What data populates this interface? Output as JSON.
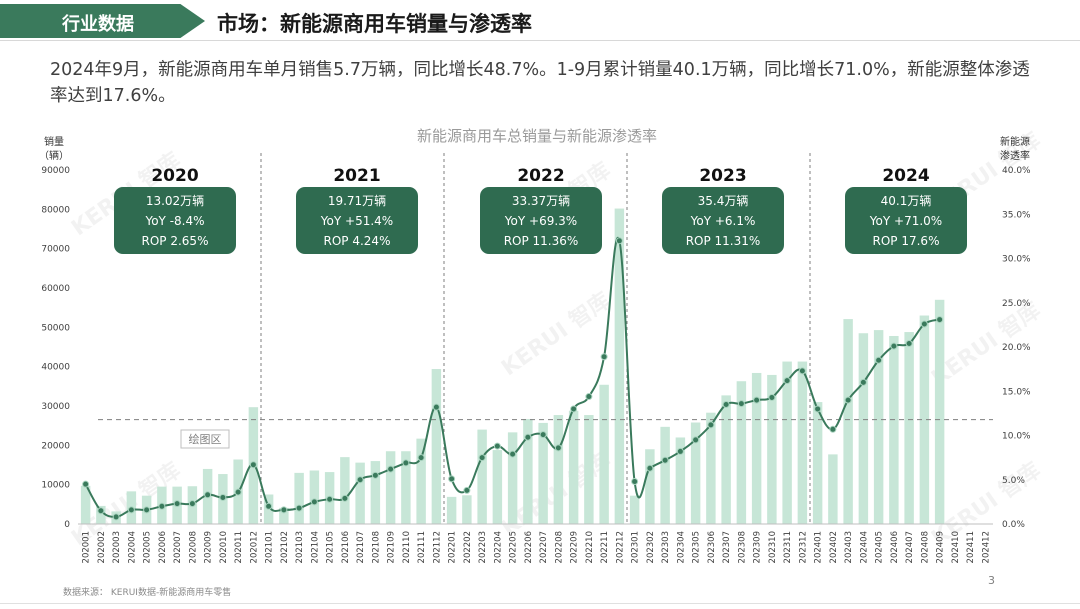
{
  "header": {
    "section_tab": "行业数据",
    "title": "市场：新能源商用车销量与渗透率"
  },
  "summary_text": "2024年9月，新能源商用车单月销售5.7万辆，同比增长48.7%。1-9月累计销量40.1万辆，同比增长71.0%，新能源整体渗透率达到17.6%。",
  "footer": {
    "source": "数据来源：  KERUI数据-新能源商用车零售",
    "page_number": "3"
  },
  "watermark": "KERUI 智库",
  "colors": {
    "bar": "#c7e6d7",
    "line": "#3a7a5c",
    "box": "#2f6b50",
    "tab": "#3a7a5c"
  },
  "chart_data": {
    "type": "bar",
    "title": "新能源商用车总销量与新能源渗透率",
    "y_left_label": [
      "销量",
      "（辆）"
    ],
    "y_right_label": [
      "新能源",
      "渗透率"
    ],
    "ylim_left": [
      0,
      90000
    ],
    "yticks_left": [
      "0",
      "10000",
      "20000",
      "30000",
      "40000",
      "50000",
      "60000",
      "70000",
      "80000",
      "90000"
    ],
    "ylim_right": [
      0,
      40
    ],
    "yticks_right": [
      "0.0%",
      "5.0%",
      "10.0%",
      "15.0%",
      "20.0%",
      "25.0%",
      "30.0%",
      "35.0%",
      "40.0%"
    ],
    "categories": [
      "202001",
      "202002",
      "202003",
      "202004",
      "202005",
      "202006",
      "202007",
      "202008",
      "202009",
      "202010",
      "202011",
      "202012",
      "202101",
      "202102",
      "202103",
      "202104",
      "202105",
      "202106",
      "202107",
      "202108",
      "202109",
      "202110",
      "202111",
      "202112",
      "202201",
      "202202",
      "202203",
      "202204",
      "202205",
      "202206",
      "202207",
      "202208",
      "202209",
      "202210",
      "202211",
      "202212",
      "202301",
      "202302",
      "202303",
      "202304",
      "202305",
      "202306",
      "202307",
      "202308",
      "202309",
      "202310",
      "202311",
      "202312",
      "202401",
      "202402",
      "202403",
      "202404",
      "202405",
      "202406",
      "202407",
      "202408",
      "202409",
      "202410",
      "202411",
      "202412"
    ],
    "series": [
      {
        "kind": "bar",
        "axis": "left",
        "values": [
          9700,
          4600,
          3200,
          8300,
          7200,
          9500,
          9500,
          9600,
          14000,
          12700,
          16400,
          29700,
          7500,
          4100,
          13000,
          13600,
          13200,
          17000,
          15600,
          16000,
          18500,
          18500,
          21700,
          39400,
          6900,
          7300,
          24000,
          18800,
          23300,
          26700,
          25700,
          27700,
          28800,
          27700,
          35400,
          80200,
          7200,
          19000,
          24700,
          22000,
          25800,
          28300,
          32700,
          36300,
          38400,
          37900,
          41300,
          41300,
          31000,
          17700,
          52100,
          48500,
          49300,
          47800,
          48800,
          53000,
          57000,
          0,
          0,
          0
        ]
      },
      {
        "kind": "line",
        "axis": "right",
        "values": [
          4.5,
          1.5,
          0.8,
          1.6,
          1.6,
          2.0,
          2.3,
          2.3,
          3.3,
          3.0,
          3.6,
          6.7,
          2.0,
          1.6,
          1.8,
          2.5,
          2.8,
          2.9,
          5.0,
          5.5,
          6.2,
          6.9,
          7.5,
          13.2,
          5.1,
          3.8,
          7.5,
          8.8,
          7.9,
          9.8,
          10.1,
          8.6,
          13.0,
          14.4,
          18.9,
          32.0,
          4.8,
          6.3,
          7.2,
          8.2,
          9.5,
          11.2,
          13.5,
          13.6,
          14.0,
          14.3,
          16.2,
          17.3,
          13.0,
          10.7,
          14.0,
          16.0,
          18.5,
          20.1,
          20.4,
          22.6,
          23.1,
          null,
          null,
          null
        ]
      }
    ],
    "reference_line_pct": 11.8,
    "years": [
      {
        "year": "2020",
        "volume": "13.02万辆",
        "yoy": "YoY -8.4%",
        "rop": "ROP 2.65%"
      },
      {
        "year": "2021",
        "volume": "19.71万辆",
        "yoy": "YoY +51.4%",
        "rop": "ROP 4.24%"
      },
      {
        "year": "2022",
        "volume": "33.37万辆",
        "yoy": "YoY +69.3%",
        "rop": "ROP 11.36%"
      },
      {
        "year": "2023",
        "volume": "35.4万辆",
        "yoy": "YoY +6.1%",
        "rop": "ROP 11.31%"
      },
      {
        "year": "2024",
        "volume": "40.1万辆",
        "yoy": "YoY +71.0%",
        "rop": "ROP 17.6%"
      }
    ],
    "plot_area_label": "绘图区"
  }
}
